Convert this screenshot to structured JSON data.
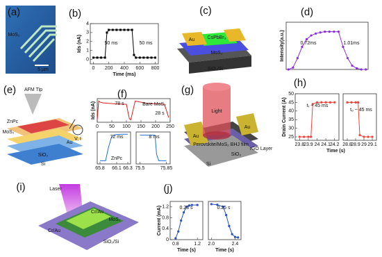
{
  "panels": [
    {
      "label": "(a)",
      "texts": [
        "MoS₂",
        "5 µm"
      ]
    },
    {
      "label": "(b)",
      "texts": [
        "50 ms",
        "50 ms"
      ],
      "charts": [
        {
          "type": "line",
          "xlabel": "Time (ms)",
          "ylabel": "Ids (nA)",
          "xlim": [
            -40,
            840
          ],
          "ylim": [
            -0.5,
            4
          ],
          "xticks": [
            0,
            200,
            400,
            600,
            800
          ],
          "yticks": [
            0,
            1,
            2,
            3,
            4
          ],
          "series": [
            {
              "color": "#000000",
              "marker": "square",
              "x": [
                0,
                50,
                100,
                150,
                175,
                200,
                250,
                300,
                350,
                400,
                450,
                500,
                525,
                550,
                600,
                650,
                700,
                750,
                800
              ],
              "values": [
                0.2,
                0.2,
                0.2,
                0.2,
                3.0,
                3.3,
                3.3,
                3.3,
                3.3,
                3.3,
                3.3,
                3.3,
                0.5,
                0.2,
                0.2,
                0.2,
                0.2,
                0.2,
                0.2
              ]
            }
          ]
        }
      ]
    },
    {
      "label": "(c)",
      "texts": [
        "Au",
        "CsPbBr₃",
        "MoS₂",
        "SiO₂/Si"
      ]
    },
    {
      "label": "(d)",
      "texts": [
        "0.72ms",
        "1.01ms"
      ],
      "charts": [
        {
          "type": "line",
          "ylabel": "Intensity(a.u.)",
          "ylim": [
            0,
            1.25
          ],
          "series": [
            {
              "color": "#8a2be2",
              "marker": "circle",
              "values": [
                0,
                0.05,
                0.3,
                0.6,
                0.8,
                0.9,
                0.95,
                0.98,
                1,
                1,
                1,
                1,
                0.6,
                0.3,
                0.1,
                0.03,
                0,
                0
              ]
            }
          ]
        }
      ]
    },
    {
      "label": "(e)",
      "texts": [
        "AFM Tip",
        "ZnPc",
        "MoS₂",
        "Au",
        "SiO₂",
        "Si",
        "V, I"
      ]
    },
    {
      "label": "(f)",
      "texts": [
        "Bare MoS₂",
        "78 s",
        "28 s",
        "72 ms",
        "ZnPc",
        "8 ms"
      ],
      "charts": [
        {
          "type": "line",
          "ylabel": "Ids (nA)",
          "xlim": [
            0,
            250
          ],
          "ylim": [
            0,
            1
          ],
          "xticks": [
            0,
            50,
            100,
            150,
            200,
            250
          ],
          "series": [
            {
              "color": "#d62020",
              "x": [
                0,
                5,
                10,
                20,
                40,
                60,
                80,
                100,
                110,
                115,
                130,
                150,
                170,
                200,
                230,
                245
              ],
              "values": [
                0.1,
                0.9,
                0.85,
                0.82,
                0.8,
                0.78,
                0.77,
                0.76,
                0.15,
                0.1,
                0.9,
                0.85,
                0.8,
                0.78,
                0.77,
                0.2
              ]
            }
          ]
        },
        {
          "type": "line",
          "xlim": [
            65.75,
            66.35
          ],
          "ylim": [
            0,
            1
          ],
          "xticks": [
            65.8,
            66.1,
            66.3
          ],
          "series": [
            {
              "color": "#1f6fd0",
              "x": [
                65.8,
                65.9,
                65.95,
                66.0,
                66.05,
                66.1,
                66.2,
                66.3
              ],
              "values": [
                0.1,
                0.1,
                0.5,
                0.8,
                0.9,
                0.92,
                0.93,
                0.93
              ]
            }
          ]
        },
        {
          "type": "line",
          "xlim": [
            75.45,
            75.9
          ],
          "ylim": [
            0,
            1
          ],
          "xticks": [
            75.5,
            75.85
          ],
          "series": [
            {
              "color": "#1f6fd0",
              "x": [
                75.5,
                75.6,
                75.65,
                75.7,
                75.72,
                75.75,
                75.8,
                75.85
              ],
              "values": [
                0.9,
                0.9,
                0.9,
                0.9,
                0.3,
                0.1,
                0.1,
                0.1
              ]
            }
          ]
        }
      ]
    },
    {
      "label": "(g)",
      "texts": [
        "Light",
        "Au",
        "Au",
        "Perovskite/MoS₂ BHJ film",
        "SiO₂",
        "Si",
        "rGO Layer"
      ]
    },
    {
      "label": "(h)",
      "texts": [
        "tᵣ ~ 45 ms",
        "tₒ ~ 45 ms"
      ],
      "xlabel": "Time (s)",
      "charts": [
        {
          "type": "line",
          "ylabel": "Drain Current (A)",
          "xlim": [
            23.75,
            24.25
          ],
          "ylim": [
            23,
            50
          ],
          "xticks": [
            23.8,
            23.9,
            24.0,
            24.1,
            24.2
          ],
          "yticks": [
            25,
            30,
            35,
            40,
            45,
            50
          ],
          "series": [
            {
              "color": "#e8453c",
              "marker": "circle",
              "x": [
                23.8,
                23.85,
                23.9,
                23.93,
                23.95,
                24.0,
                24.05,
                24.1,
                24.15,
                24.2
              ],
              "values": [
                25,
                25,
                25,
                25,
                44,
                45,
                45,
                45,
                45,
                45
              ]
            }
          ]
        },
        {
          "type": "line",
          "xlim": [
            28.75,
            29.15
          ],
          "ylim": [
            23,
            50
          ],
          "xticks": [
            28.8,
            28.9,
            29.0,
            29.1
          ],
          "series": [
            {
              "color": "#e8453c",
              "marker": "circle",
              "x": [
                28.8,
                28.85,
                28.9,
                28.93,
                28.95,
                29.0,
                29.05,
                29.1
              ],
              "values": [
                45,
                45,
                45,
                45,
                26,
                25,
                25,
                25
              ]
            }
          ]
        }
      ]
    },
    {
      "label": "(i)",
      "texts": [
        "Laser",
        "Cr/Au",
        "Cr/Au",
        "MoS₂",
        "SiO₂/Si"
      ]
    },
    {
      "label": "(j)",
      "texts": [
        "0.23 s",
        "0.25 s"
      ],
      "charts": [
        {
          "type": "line",
          "xlabel": "Time (s)",
          "ylabel": "Current (mA)",
          "xlim": [
            0.7,
            1.3
          ],
          "ylim": [
            0,
            1.4
          ],
          "xticks": [
            0.8,
            1.2
          ],
          "yticks": [
            0,
            0.4,
            0.8,
            1.2
          ],
          "series": [
            {
              "color": "#2450c8",
              "marker": "circle",
              "x": [
                0.8,
                0.85,
                0.9,
                0.95,
                1.0,
                1.05,
                1.1,
                1.2
              ],
              "values": [
                0.05,
                0.3,
                0.7,
                1.0,
                1.2,
                1.25,
                1.27,
                1.27
              ]
            }
          ]
        },
        {
          "type": "line",
          "xlabel": "Time (s)",
          "xlim": [
            1.95,
            2.5
          ],
          "ylim": [
            0,
            1.4
          ],
          "xticks": [
            {
              "value": 2,
              "label": "2.0"
            },
            2.4
          ],
          "series": [
            {
              "color": "#2450c8",
              "marker": "circle",
              "x": [
                2.0,
                2.1,
                2.2,
                2.25,
                2.3,
                2.35,
                2.4,
                2.45
              ],
              "values": [
                1.3,
                1.28,
                1.2,
                0.9,
                0.5,
                0.2,
                0.1,
                0.08
              ]
            }
          ]
        }
      ]
    }
  ]
}
